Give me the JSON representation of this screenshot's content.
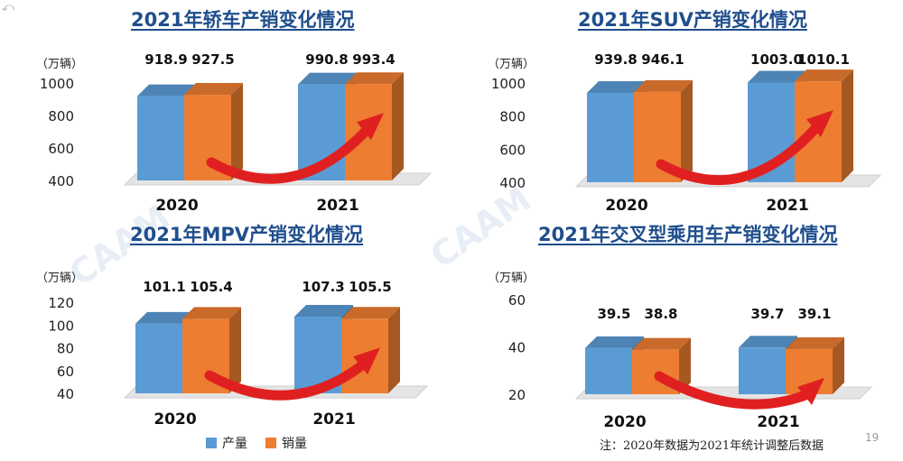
{
  "colors": {
    "production": "#5b9bd5",
    "sales": "#ed7d31",
    "arrow": "#e02020",
    "title": "#1f4e8c"
  },
  "legend": {
    "production_label": "产量",
    "sales_label": "销量"
  },
  "footnote": "注：2020年数据为2021年统计调整后数据",
  "page_number": "19",
  "chart_data": [
    {
      "type": "bar",
      "title": "2021年轿车产销变化情况",
      "unit": "（万辆）",
      "categories": [
        "2020",
        "2021"
      ],
      "series": [
        {
          "name": "产量",
          "values": [
            918.9,
            990.8
          ]
        },
        {
          "name": "销量",
          "values": [
            927.5,
            993.4
          ]
        }
      ],
      "value_labels": [
        [
          "918.9",
          "990.8"
        ],
        [
          "927.5",
          "993.4"
        ]
      ],
      "ylim": [
        400,
        1000
      ],
      "yticks": [
        "400",
        "600",
        "800",
        "1000"
      ],
      "ytick_values": [
        400,
        600,
        800,
        1000
      ]
    },
    {
      "type": "bar",
      "title": "2021年SUV产销变化情况",
      "unit": "（万辆）",
      "categories": [
        "2020",
        "2021"
      ],
      "series": [
        {
          "name": "产量",
          "values": [
            939.8,
            1003.0
          ]
        },
        {
          "name": "销量",
          "values": [
            946.1,
            1010.1
          ]
        }
      ],
      "value_labels": [
        [
          "939.8",
          "1003.0"
        ],
        [
          "946.1",
          "1010.1"
        ]
      ],
      "ylim": [
        400,
        1000
      ],
      "yticks": [
        "400",
        "600",
        "800",
        "1000"
      ],
      "ytick_values": [
        400,
        600,
        800,
        1000
      ]
    },
    {
      "type": "bar",
      "title": "2021年MPV产销变化情况",
      "unit": "（万辆）",
      "categories": [
        "2020",
        "2021"
      ],
      "series": [
        {
          "name": "产量",
          "values": [
            101.1,
            107.3
          ]
        },
        {
          "name": "销量",
          "values": [
            105.4,
            105.5
          ]
        }
      ],
      "value_labels": [
        [
          "101.1",
          "107.3"
        ],
        [
          "105.4",
          "105.5"
        ]
      ],
      "ylim": [
        40,
        120
      ],
      "yticks": [
        "40",
        "60",
        "80",
        "100",
        "120"
      ],
      "ytick_values": [
        40,
        60,
        80,
        100,
        120
      ]
    },
    {
      "type": "bar",
      "title": "2021年交叉型乘用车产销变化情况",
      "unit": "（万辆）",
      "categories": [
        "2020",
        "2021"
      ],
      "series": [
        {
          "name": "产量",
          "values": [
            39.5,
            39.7
          ]
        },
        {
          "name": "销量",
          "values": [
            38.8,
            39.1
          ]
        }
      ],
      "value_labels": [
        [
          "39.5",
          "39.7"
        ],
        [
          "38.8",
          "39.1"
        ]
      ],
      "ylim": [
        20,
        60
      ],
      "yticks": [
        "20",
        "40",
        "60"
      ],
      "ytick_values": [
        20,
        40,
        60
      ]
    }
  ]
}
